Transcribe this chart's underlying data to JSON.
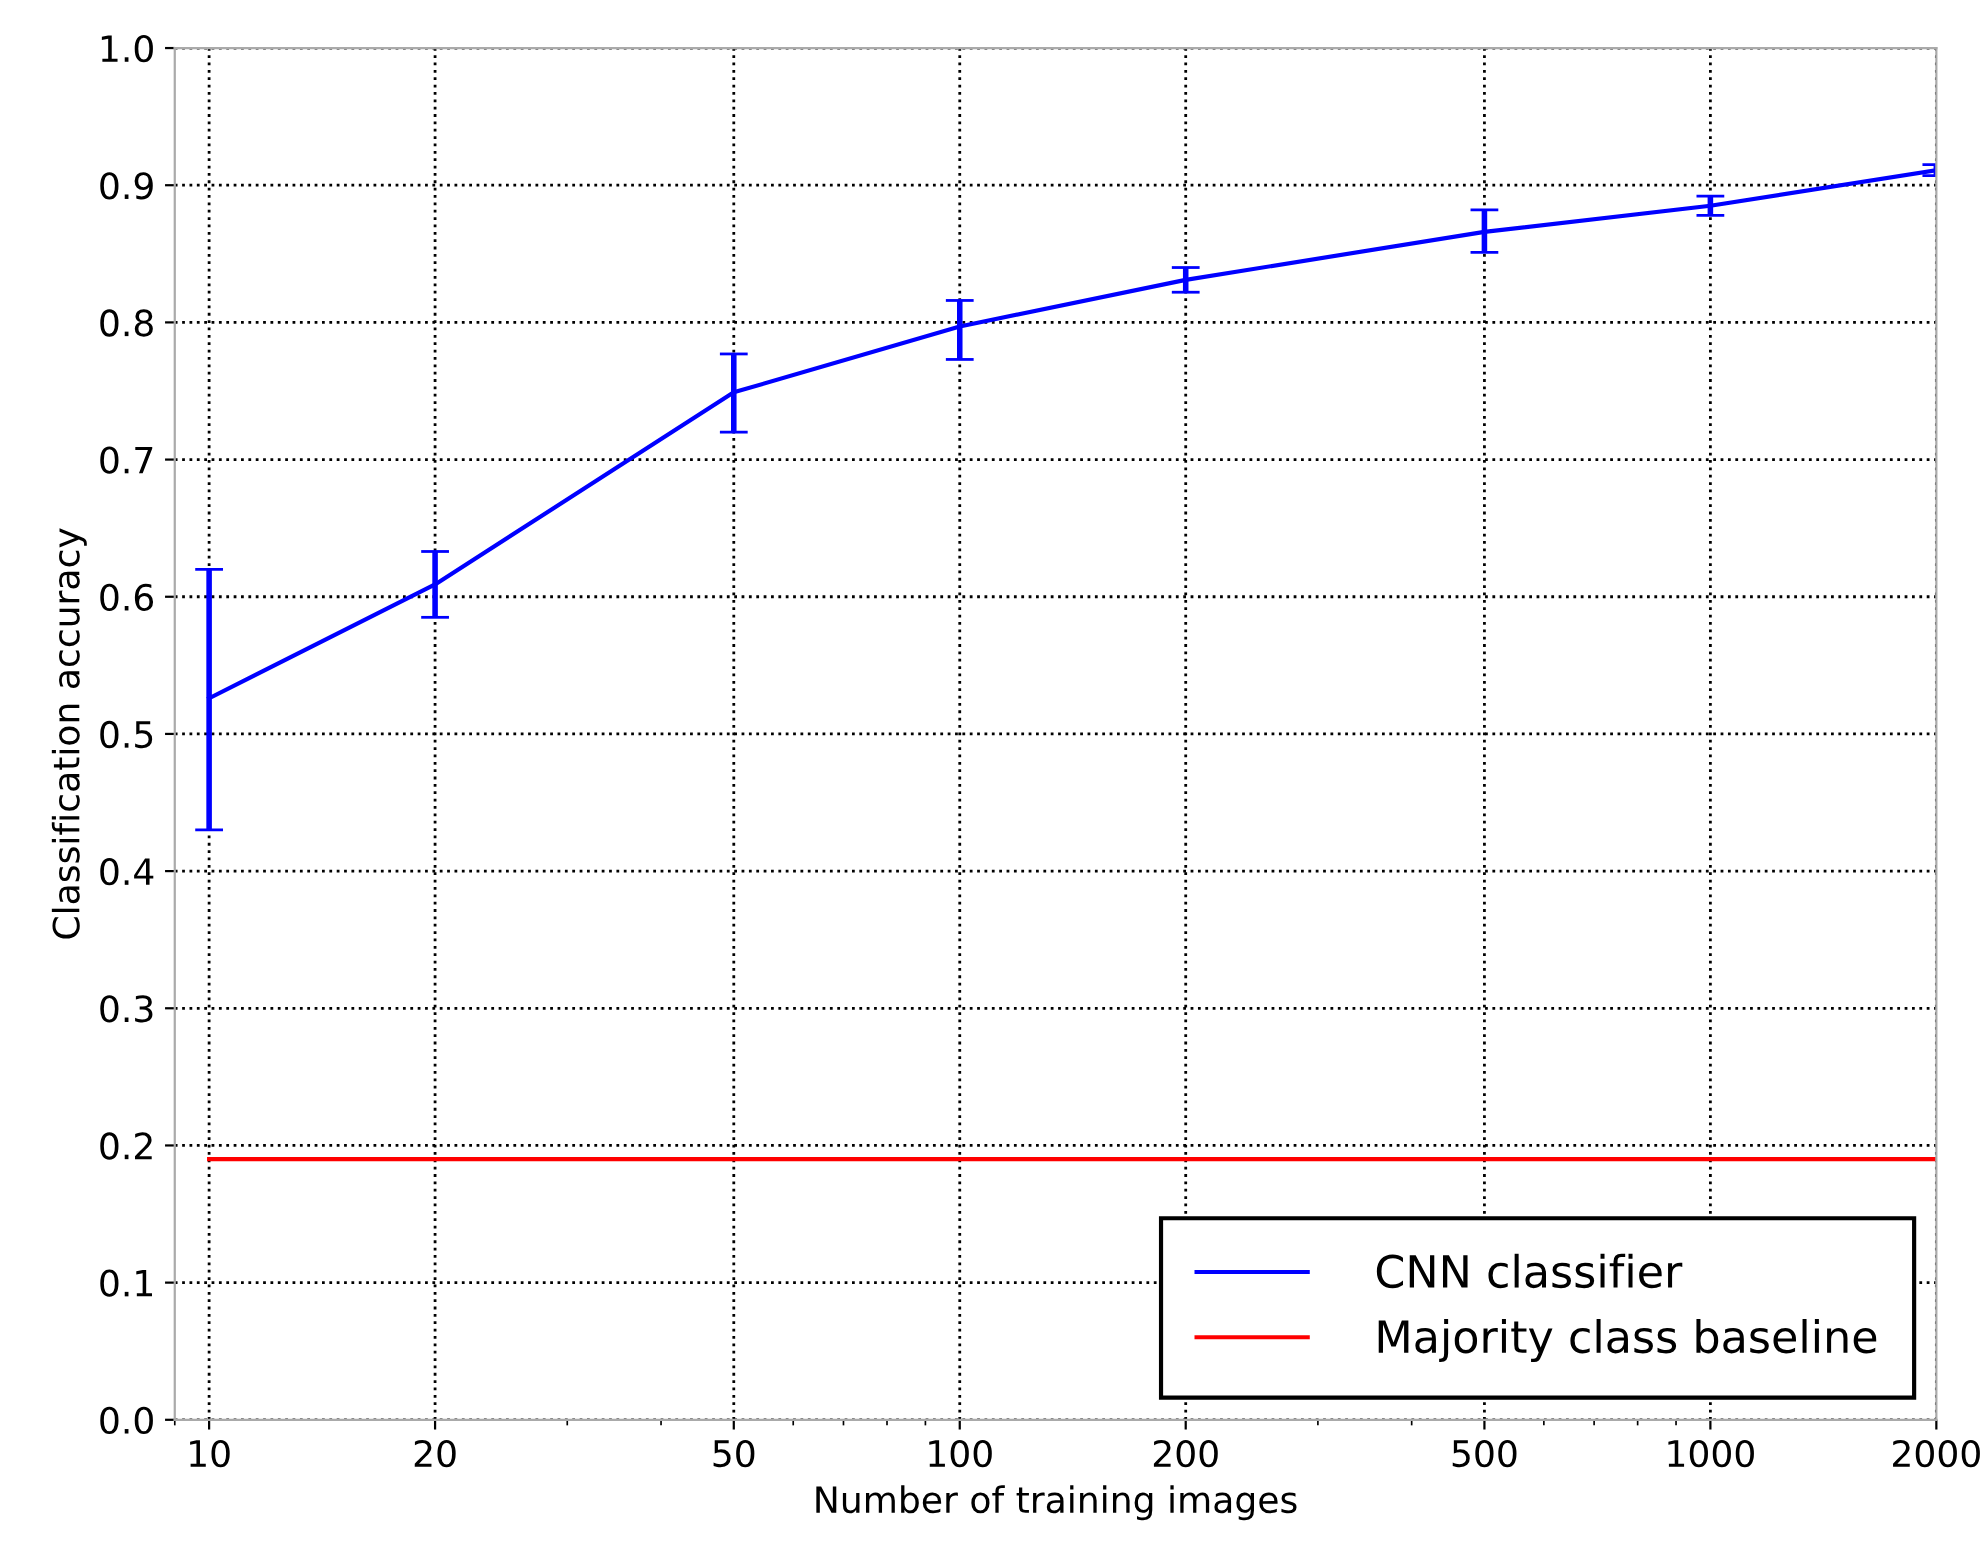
{
  "chart_data": {
    "type": "line",
    "xlabel": "Number of training images",
    "ylabel": "Classification accuracy",
    "x": [
      10,
      20,
      50,
      100,
      200,
      500,
      1000,
      2000
    ],
    "series": [
      {
        "name": "CNN classifier",
        "color": "#0000ff",
        "values": [
          0.526,
          0.609,
          0.749,
          0.797,
          0.831,
          0.866,
          0.885,
          0.911
        ],
        "errors": [
          [
            0.43,
            0.62
          ],
          [
            0.585,
            0.633
          ],
          [
            0.72,
            0.777
          ],
          [
            0.773,
            0.816
          ],
          [
            0.822,
            0.84
          ],
          [
            0.851,
            0.882
          ],
          [
            0.878,
            0.892
          ],
          [
            0.907,
            0.915
          ]
        ]
      },
      {
        "name": "Majority class baseline",
        "color": "#ff0000",
        "x": [
          10,
          2000
        ],
        "values": [
          0.19,
          0.19
        ]
      }
    ],
    "log": "x",
    "xlim": [
      9,
      2000
    ],
    "xticks": [
      10,
      20,
      50,
      100,
      200,
      500,
      1000,
      2000
    ],
    "ylim": [
      0,
      1
    ],
    "yticks": [
      {
        "value": 0,
        "label": "0.0"
      },
      {
        "value": 0.1,
        "label": "0.1"
      },
      {
        "value": 0.2,
        "label": "0.2"
      },
      {
        "value": 0.3,
        "label": "0.3"
      },
      {
        "value": 0.4,
        "label": "0.4"
      },
      {
        "value": 0.5,
        "label": "0.5"
      },
      {
        "value": 0.6,
        "label": "0.6"
      },
      {
        "value": 0.7,
        "label": "0.7"
      },
      {
        "value": 0.8,
        "label": "0.8"
      },
      {
        "value": 0.9,
        "label": "0.9"
      },
      {
        "value": 1,
        "label": "1.0"
      }
    ],
    "grid": true,
    "legend": "bottom right",
    "marker": "none",
    "line_style": "solid"
  }
}
